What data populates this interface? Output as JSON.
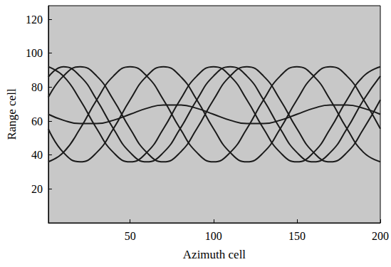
{
  "chart_data": {
    "type": "line",
    "x_label": "Azimuth cell",
    "y_label": "Range cell",
    "x": [
      1,
      10,
      20,
      30,
      40,
      50,
      60,
      70,
      80,
      90,
      100,
      110,
      120,
      130,
      140,
      150,
      160,
      170,
      180,
      190,
      200
    ],
    "series": [
      {
        "color": "#1a1a1a",
        "values": [
          64,
          60.5,
          58.5,
          58.5,
          60.5,
          64,
          67.5,
          69.5,
          69.5,
          67.5,
          64,
          60.5,
          58.5,
          58.5,
          60.5,
          64,
          67.5,
          69.5,
          69.5,
          67.5,
          64
        ]
      },
      {
        "color": "#1a1a1a",
        "values": [
          92,
          86.5,
          72.5,
          55.5,
          41.5,
          36,
          41.5,
          55.5,
          72.5,
          86.5,
          92,
          86.5,
          72.5,
          55.5,
          41.5,
          36,
          41.5,
          55.5,
          72.5,
          86.5,
          92
        ]
      },
      {
        "color": "#1a1a1a",
        "values": [
          74,
          86.5,
          92,
          86.5,
          72.5,
          55.5,
          41.5,
          36,
          41.5,
          55.5,
          72.5,
          86.5,
          92,
          86.5,
          72.5,
          55.5,
          41.5,
          36,
          41.5,
          55.5,
          72.5
        ]
      },
      {
        "color": "#1a1a1a",
        "values": [
          36,
          41.5,
          55.5,
          72.5,
          86.5,
          92,
          86.5,
          72.5,
          55.5,
          41.5,
          36,
          41.5,
          55.5,
          72.5,
          86.5,
          92,
          86.5,
          72.5,
          55.5,
          41.5,
          36
        ]
      },
      {
        "color": "#1a1a1a",
        "values": [
          55.5,
          41.5,
          36,
          41.5,
          55.5,
          72.5,
          86.5,
          92,
          86.5,
          72.5,
          55.5,
          41.5,
          36,
          41.5,
          55.5,
          72.5,
          86.5,
          92,
          86.5,
          72.5,
          55.5
        ]
      },
      {
        "color": "#1a1a1a",
        "values": [
          86,
          92,
          86.5,
          72.5,
          55.5,
          41.5,
          36,
          41.5,
          55.5,
          72.5,
          86.5,
          92,
          86.5,
          72.5,
          55.5,
          41.5,
          36,
          41.5,
          55.5,
          72.5,
          86.5
        ]
      }
    ],
    "xlim": [
      1,
      200
    ],
    "xticks": [
      50,
      100,
      150,
      200
    ],
    "ylim": [
      0,
      128
    ],
    "yticks": [
      20,
      40,
      60,
      80,
      100,
      120
    ],
    "grid": false
  }
}
